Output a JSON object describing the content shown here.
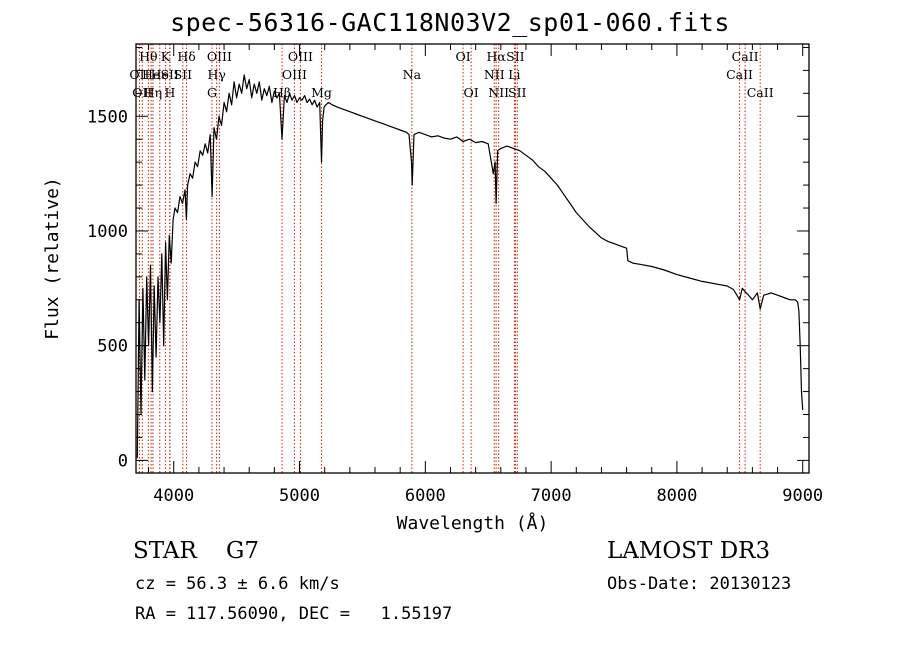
{
  "title": "spec-56316-GAC118N03V2_sp01-060.fits",
  "info": {
    "object_class": "STAR    G7",
    "survey": "LAMOST DR3",
    "redshift_line": "cz = 56.3 ± 6.6 km/s",
    "obs_date": "Obs-Date: 20130123",
    "coords": "RA = 117.56090, DEC =   1.55197"
  },
  "colors": {
    "spectrum": "#000000",
    "line_marker": "#cc2200",
    "axis": "#000000"
  },
  "chart_data": {
    "type": "line",
    "title": "spec-56316-GAC118N03V2_sp01-060.fits",
    "xlabel": "Wavelength (Å)",
    "ylabel": "Flux (relative)",
    "xlim": [
      3700,
      9050
    ],
    "ylim": [
      -55,
      1815
    ],
    "xticks": [
      4000,
      5000,
      6000,
      7000,
      8000,
      9000
    ],
    "yticks": [
      0,
      500,
      1000,
      1500
    ],
    "series": [
      {
        "name": "flux",
        "x": [
          3710,
          3725,
          3740,
          3755,
          3770,
          3785,
          3800,
          3815,
          3830,
          3845,
          3860,
          3875,
          3890,
          3905,
          3920,
          3935,
          3950,
          3965,
          3980,
          3995,
          4010,
          4030,
          4050,
          4070,
          4090,
          4101,
          4110,
          4130,
          4150,
          4170,
          4190,
          4210,
          4230,
          4250,
          4270,
          4290,
          4305,
          4320,
          4340,
          4360,
          4380,
          4400,
          4420,
          4440,
          4460,
          4480,
          4500,
          4520,
          4540,
          4560,
          4580,
          4600,
          4620,
          4640,
          4660,
          4680,
          4700,
          4720,
          4740,
          4760,
          4780,
          4800,
          4820,
          4840,
          4861,
          4880,
          4900,
          4920,
          4940,
          4960,
          4980,
          5000,
          5020,
          5040,
          5060,
          5080,
          5100,
          5120,
          5140,
          5160,
          5175,
          5183,
          5195,
          5210,
          5230,
          5260,
          5300,
          5350,
          5400,
          5450,
          5500,
          5550,
          5600,
          5650,
          5700,
          5750,
          5800,
          5850,
          5870,
          5890,
          5896,
          5910,
          5950,
          6000,
          6050,
          6100,
          6150,
          6200,
          6250,
          6300,
          6350,
          6400,
          6450,
          6500,
          6540,
          6555,
          6563,
          6575,
          6600,
          6650,
          6700,
          6750,
          6800,
          6850,
          6900,
          6950,
          7000,
          7050,
          7100,
          7150,
          7200,
          7250,
          7300,
          7350,
          7400,
          7450,
          7500,
          7550,
          7600,
          7610,
          7650,
          7700,
          7800,
          7900,
          8000,
          8100,
          8200,
          8300,
          8400,
          8450,
          8498,
          8520,
          8542,
          8570,
          8600,
          8640,
          8662,
          8690,
          8750,
          8800,
          8850,
          8900,
          8940,
          8960,
          8970,
          8980,
          8990,
          9000
        ],
        "y": [
          10,
          700,
          200,
          750,
          350,
          800,
          500,
          850,
          300,
          760,
          450,
          800,
          600,
          900,
          500,
          950,
          700,
          980,
          860,
          1050,
          1100,
          1080,
          1150,
          1120,
          1180,
          1050,
          1200,
          1250,
          1230,
          1300,
          1280,
          1350,
          1330,
          1380,
          1340,
          1420,
          1150,
          1450,
          1400,
          1500,
          1460,
          1560,
          1520,
          1600,
          1550,
          1650,
          1580,
          1640,
          1600,
          1680,
          1620,
          1660,
          1580,
          1640,
          1600,
          1650,
          1570,
          1620,
          1590,
          1630,
          1560,
          1610,
          1580,
          1600,
          1400,
          1590,
          1560,
          1600,
          1570,
          1590,
          1560,
          1580,
          1570,
          1590,
          1560,
          1575,
          1550,
          1570,
          1540,
          1560,
          1300,
          1480,
          1540,
          1550,
          1560,
          1550,
          1540,
          1530,
          1520,
          1510,
          1500,
          1490,
          1480,
          1470,
          1460,
          1450,
          1440,
          1430,
          1420,
          1300,
          1200,
          1420,
          1430,
          1420,
          1410,
          1415,
          1405,
          1400,
          1410,
          1390,
          1400,
          1385,
          1390,
          1380,
          1250,
          1300,
          1120,
          1350,
          1360,
          1370,
          1360,
          1350,
          1330,
          1310,
          1280,
          1260,
          1230,
          1200,
          1160,
          1120,
          1080,
          1050,
          1020,
          995,
          970,
          955,
          945,
          935,
          925,
          870,
          860,
          855,
          845,
          830,
          810,
          795,
          780,
          770,
          760,
          745,
          700,
          750,
          735,
          720,
          700,
          730,
          660,
          720,
          730,
          720,
          710,
          700,
          700,
          690,
          650,
          500,
          300,
          220
        ]
      }
    ],
    "line_markers": [
      {
        "wavelength": 3727,
        "label": "OII",
        "row": 2
      },
      {
        "wavelength": 3750,
        "label": "OII",
        "row": 3
      },
      {
        "wavelength": 3798,
        "label": "Hθ",
        "row": 1
      },
      {
        "wavelength": 3820,
        "label": "He",
        "row": 2
      },
      {
        "wavelength": 3835,
        "label": "Hη",
        "row": 3
      },
      {
        "wavelength": 3889,
        "label": "He",
        "row": 2
      },
      {
        "wavelength": 3934,
        "label": "K",
        "row": 1
      },
      {
        "wavelength": 3968,
        "label": "SII",
        "row": 2
      },
      {
        "wavelength": 3970,
        "label": "H",
        "row": 3
      },
      {
        "wavelength": 4102,
        "label": "Hδ",
        "row": 1
      },
      {
        "wavelength": 4072,
        "label": "SII",
        "row": 2
      },
      {
        "wavelength": 4304,
        "label": "G",
        "row": 3
      },
      {
        "wavelength": 4341,
        "label": "Hγ",
        "row": 2
      },
      {
        "wavelength": 4363,
        "label": "OIII",
        "row": 1
      },
      {
        "wavelength": 4861,
        "label": "Hβ",
        "row": 3
      },
      {
        "wavelength": 4959,
        "label": "OIII",
        "row": 2
      },
      {
        "wavelength": 5007,
        "label": "OIII",
        "row": 1
      },
      {
        "wavelength": 5175,
        "label": "Mg",
        "row": 3
      },
      {
        "wavelength": 5893,
        "label": "Na",
        "row": 2
      },
      {
        "wavelength": 6300,
        "label": "OI",
        "row": 1
      },
      {
        "wavelength": 6364,
        "label": "OI",
        "row": 3
      },
      {
        "wavelength": 6548,
        "label": "NII",
        "row": 2
      },
      {
        "wavelength": 6563,
        "label": "Hα",
        "row": 1
      },
      {
        "wavelength": 6583,
        "label": "NII",
        "row": 3
      },
      {
        "wavelength": 6708,
        "label": "Li",
        "row": 2
      },
      {
        "wavelength": 6716,
        "label": "SII",
        "row": 1
      },
      {
        "wavelength": 6731,
        "label": "SII",
        "row": 3
      },
      {
        "wavelength": 8498,
        "label": "CaII",
        "row": 2
      },
      {
        "wavelength": 8542,
        "label": "CaII",
        "row": 1
      },
      {
        "wavelength": 8662,
        "label": "CaII",
        "row": 3
      }
    ]
  }
}
